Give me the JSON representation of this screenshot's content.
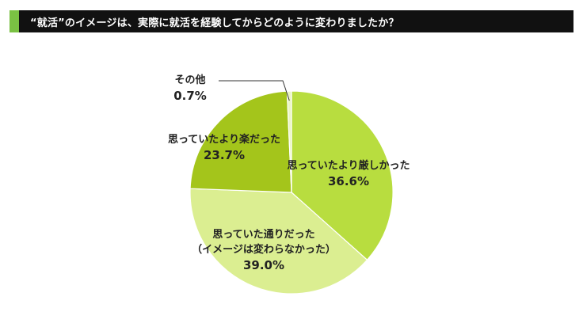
{
  "header": {
    "title": "“就活”のイメージは、実際に就活を経験してからどのように変わりましたか？",
    "accent_color": "#7ac143",
    "bar_color": "#111111"
  },
  "chart_data": {
    "type": "pie",
    "title": "“就活”のイメージは、実際に就活を経験してからどのように変わりましたか？",
    "start": "12 o'clock, clockwise",
    "slices": [
      {
        "lines": [
          "思っていたより厳しかった"
        ],
        "value": 36.6,
        "value_label": "36.6%",
        "color": "#b8dd3f"
      },
      {
        "lines": [
          "思っていた通りだった",
          "（イメージは変わらなかった）"
        ],
        "value": 39.0,
        "value_label": "39.0%",
        "color": "#dbee91"
      },
      {
        "lines": [
          "思っていたより楽だった"
        ],
        "value": 23.7,
        "value_label": "23.7%",
        "color": "#a4c51b"
      },
      {
        "lines": [
          "その他"
        ],
        "value": 0.7,
        "value_label": "0.7%",
        "color": "#eaf5c4"
      }
    ]
  }
}
